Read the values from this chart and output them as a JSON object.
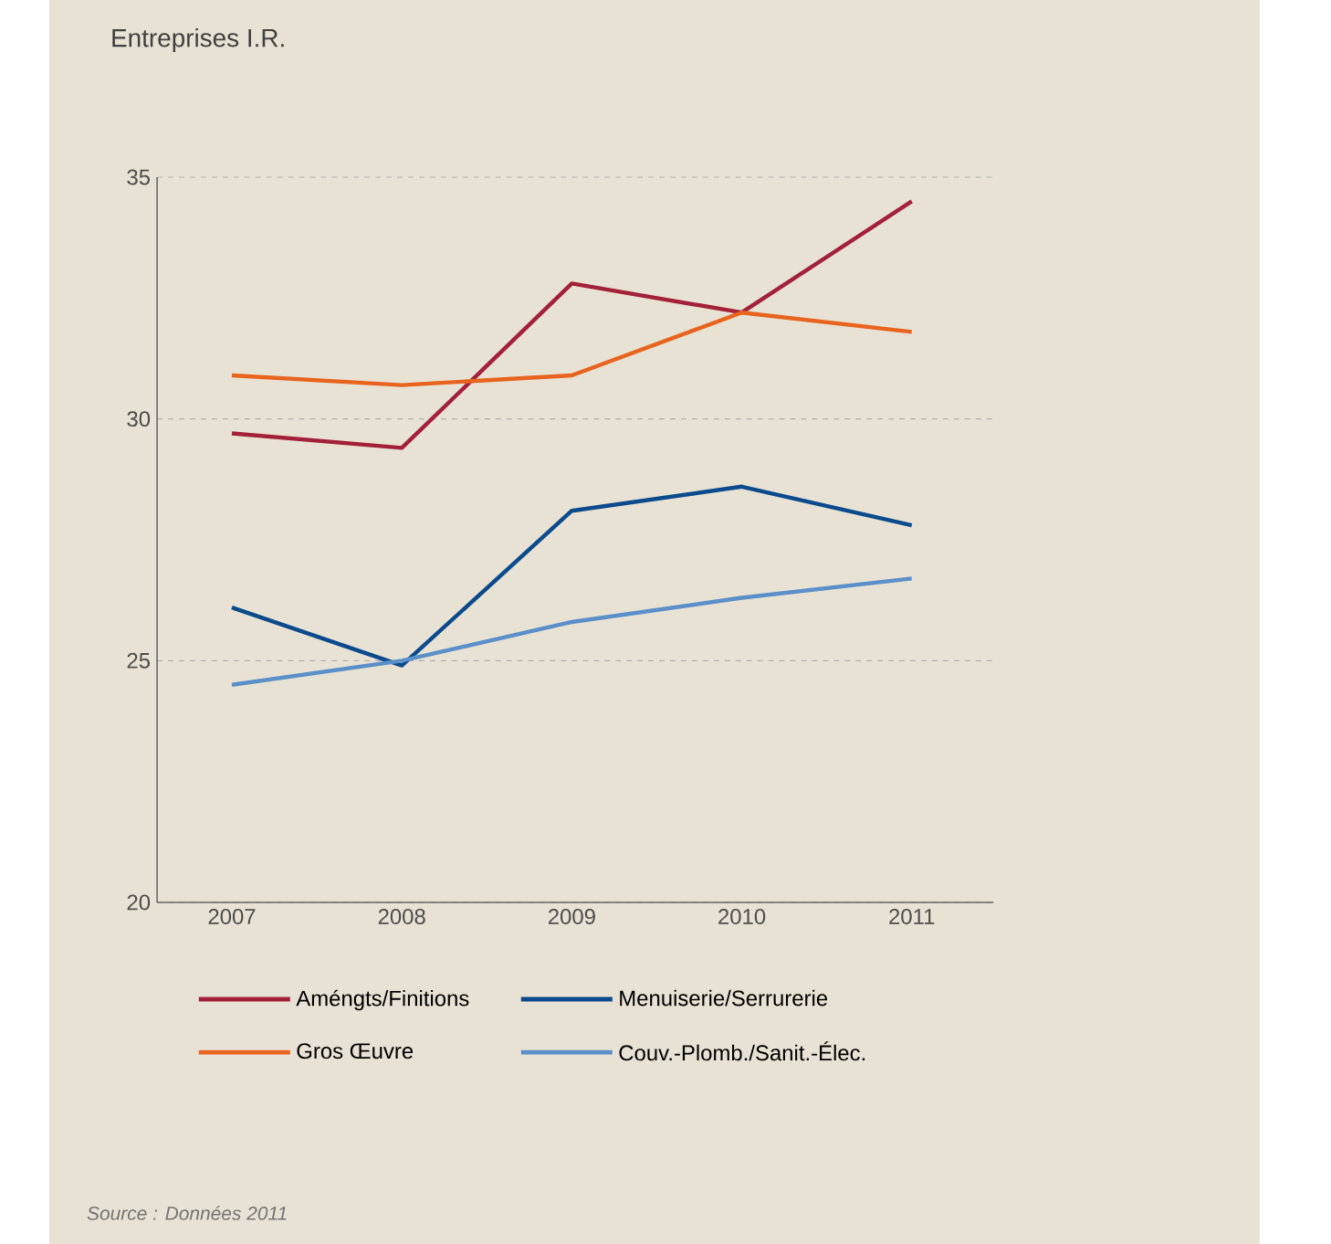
{
  "chart_data": {
    "type": "line",
    "title": "Entreprises I.R.",
    "categories": [
      "2007",
      "2008",
      "2009",
      "2010",
      "2011"
    ],
    "series": [
      {
        "name": "Améngts/Finitions",
        "color": "#a3203a",
        "values": [
          29.7,
          29.4,
          32.8,
          32.2,
          34.5
        ]
      },
      {
        "name": "Menuiserie/Serrurerie",
        "color": "#0a4a8c",
        "values": [
          26.1,
          24.9,
          28.1,
          28.6,
          27.8
        ]
      },
      {
        "name": "Gros Œuvre",
        "color": "#e8641e",
        "values": [
          30.9,
          30.7,
          30.9,
          32.2,
          31.8
        ]
      },
      {
        "name": "Couv.-Plomb./Sanit.-Élec.",
        "color": "#5b8fc9",
        "values": [
          24.5,
          25.0,
          25.8,
          26.3,
          26.7
        ]
      }
    ],
    "ylim": [
      20,
      35
    ],
    "yticks": [
      20,
      25,
      30,
      35
    ],
    "grid": "y",
    "legend": "bottom",
    "marker": "none",
    "line_style": "solid",
    "annotations": [
      "*Source : Données 2011*"
    ]
  }
}
